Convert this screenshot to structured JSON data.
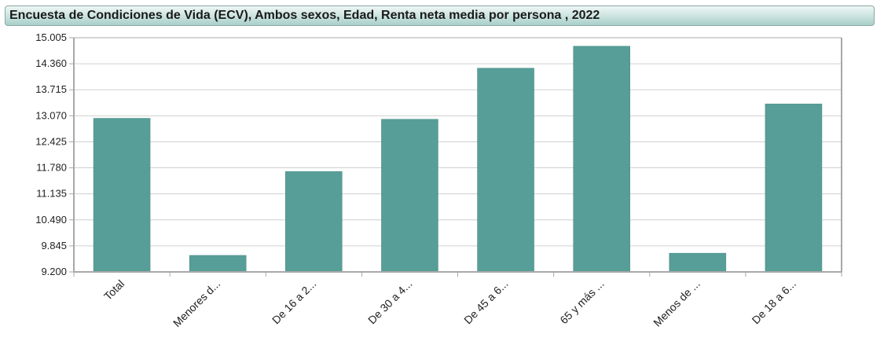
{
  "title": "Encuesta de Condiciones de Vida (ECV), Ambos sexos, Edad, Renta neta media por persona , 2022",
  "colors": {
    "bar": "#579e98",
    "grid": "#d0d0d0",
    "axis": "#a8a8a8"
  },
  "chart_data": {
    "type": "bar",
    "title": "Encuesta de Condiciones de Vida (ECV), Ambos sexos, Edad, Renta neta media por persona , 2022",
    "xlabel": "",
    "ylabel": "",
    "categories": [
      "Total",
      "Menores d...",
      "De 16 a 2...",
      "De 30 a 4...",
      "De 45 a 6...",
      "65 y más ...",
      "Menos de ...",
      "De 18 a 6..."
    ],
    "values": [
      13008,
      9610,
      11690,
      12985,
      14250,
      14795,
      9665,
      13365
    ],
    "ylim": [
      9200,
      15005
    ],
    "yticks": [
      "9.200",
      "9.845",
      "10.490",
      "11.135",
      "11.780",
      "12.425",
      "13.070",
      "13.715",
      "14.360",
      "15.005"
    ],
    "grid": true,
    "legend": "none"
  }
}
